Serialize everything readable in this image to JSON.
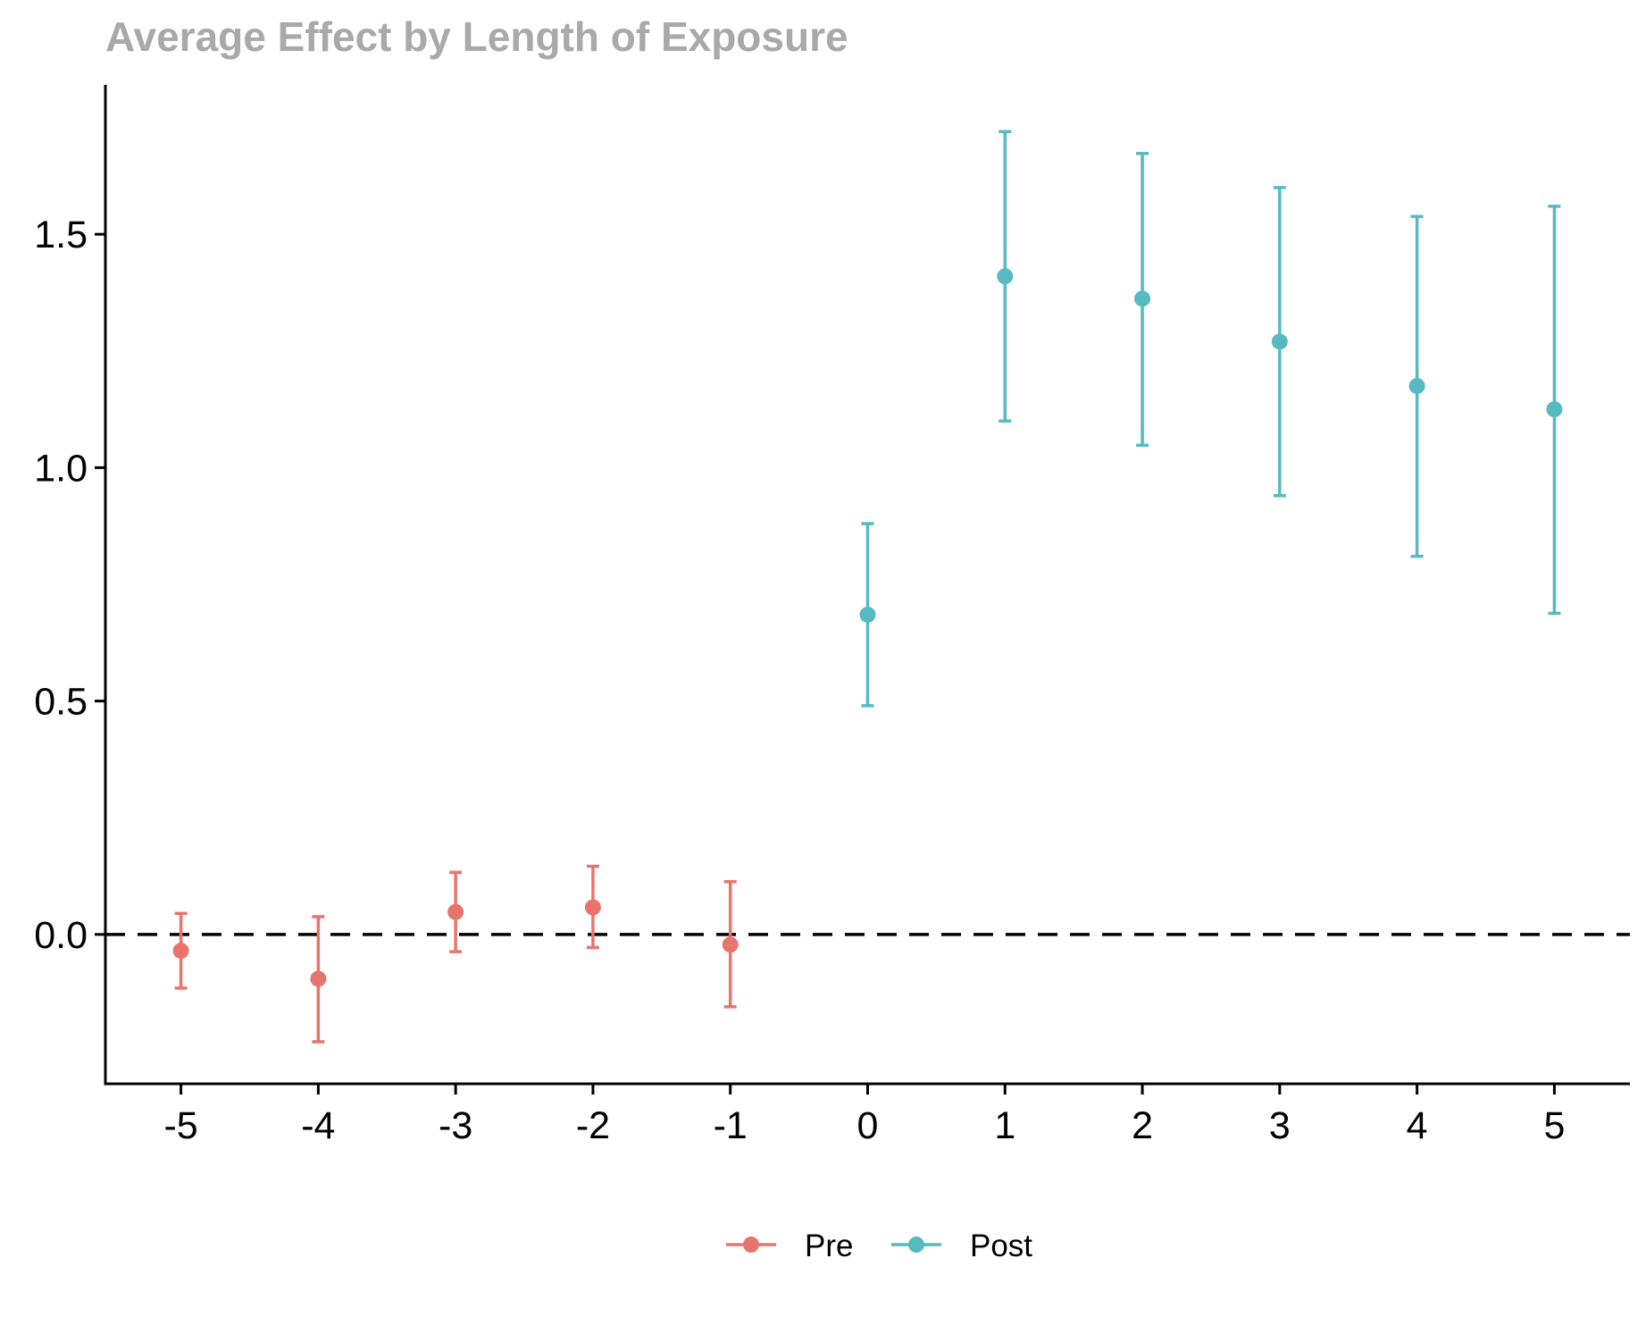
{
  "chart_data": {
    "type": "scatter",
    "title": "Average Effect by Length of Exposure",
    "xlabel": "",
    "ylabel": "",
    "x_ticks": [
      -5,
      -4,
      -3,
      -2,
      -1,
      0,
      1,
      2,
      3,
      4,
      5
    ],
    "y_ticks": [
      0.0,
      0.5,
      1.0,
      1.5
    ],
    "y_tick_labels": [
      "0.0",
      "0.5",
      "1.0",
      "1.5"
    ],
    "xlim": [
      -5.55,
      5.55
    ],
    "ylim": [
      -0.32,
      1.82
    ],
    "reference_line": {
      "y": 0,
      "style": "dashed",
      "color": "#000000"
    },
    "grid": false,
    "legend_position": "bottom",
    "series": [
      {
        "name": "Pre",
        "color": "#E8756D",
        "points": [
          {
            "x": -5,
            "y": -0.035,
            "lower": -0.115,
            "upper": 0.045
          },
          {
            "x": -4,
            "y": -0.095,
            "lower": -0.23,
            "upper": 0.038
          },
          {
            "x": -3,
            "y": 0.048,
            "lower": -0.037,
            "upper": 0.133
          },
          {
            "x": -2,
            "y": 0.058,
            "lower": -0.028,
            "upper": 0.146
          },
          {
            "x": -1,
            "y": -0.022,
            "lower": -0.155,
            "upper": 0.113
          }
        ]
      },
      {
        "name": "Post",
        "color": "#55BBC1",
        "points": [
          {
            "x": 0,
            "y": 0.685,
            "lower": 0.49,
            "upper": 0.88
          },
          {
            "x": 1,
            "y": 1.41,
            "lower": 1.1,
            "upper": 1.72
          },
          {
            "x": 2,
            "y": 1.362,
            "lower": 1.048,
            "upper": 1.673
          },
          {
            "x": 3,
            "y": 1.27,
            "lower": 0.94,
            "upper": 1.6
          },
          {
            "x": 4,
            "y": 1.175,
            "lower": 0.81,
            "upper": 1.538
          },
          {
            "x": 5,
            "y": 1.125,
            "lower": 0.688,
            "upper": 1.56
          }
        ]
      }
    ]
  }
}
